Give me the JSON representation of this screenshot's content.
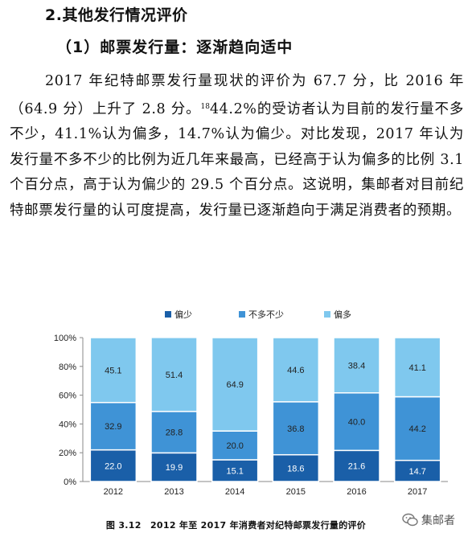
{
  "heading": "2.其他发行情况评价",
  "subheading": "（1）邮票发行量：逐渐趋向适中",
  "paragraph": {
    "part1": "2017 年纪特邮票发行量现状的评价为 67.7 分，比 2016 年（64.9 分）上升了 2.8 分。",
    "footnote": "18",
    "part2": "44.2%的受访者认为目前的发行量不多不少，41.1%认为偏多，14.7%认为偏少。对比发现，2017 年认为发行量不多不少的比例为近几年来最高，已经高于认为偏多的比例 3.1 个百分点，高于认为偏少的 29.5 个百分点。这说明，集邮者对目前纪特邮票发行量的认可度提高，发行量已逐渐趋向于满足消费者的预期。"
  },
  "chart_data": {
    "type": "bar",
    "stacked": true,
    "categories": [
      "2012",
      "2013",
      "2014",
      "2015",
      "2016",
      "2017"
    ],
    "series": [
      {
        "name": "偏少",
        "color": "#1a5fa8",
        "values": [
          22.0,
          19.9,
          15.1,
          18.6,
          21.6,
          14.7
        ]
      },
      {
        "name": "不多不少",
        "color": "#3f93d6",
        "values": [
          32.9,
          28.8,
          20.0,
          36.8,
          40.0,
          44.2
        ]
      },
      {
        "name": "偏多",
        "color": "#7fc8ee",
        "values": [
          45.1,
          51.4,
          64.9,
          44.6,
          38.4,
          41.1
        ]
      }
    ],
    "value_labels": [
      [
        "22.0",
        "19.9",
        "15.1",
        "18.6",
        "21.6",
        "14.7"
      ],
      [
        "32.9",
        "28.8",
        "20.0",
        "36.8",
        "40.0",
        "44.2"
      ],
      [
        "45.1",
        "51.4",
        "64.9",
        "44.6",
        "38.4",
        "41.1"
      ]
    ],
    "y_ticks": [
      "0%",
      "20%",
      "40%",
      "60%",
      "80%",
      "100%"
    ],
    "ylim": [
      0,
      100
    ],
    "legend_position": "top",
    "grid": false
  },
  "caption": "图 3.12　2012 年至 2017 年消费者对纪特邮票发行量的评价",
  "watermark": {
    "text": "集邮者",
    "icon": "wechat-icon"
  }
}
